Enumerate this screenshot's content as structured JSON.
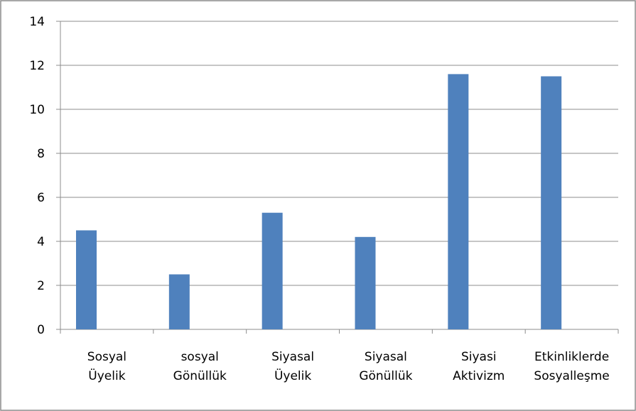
{
  "chart_data": {
    "type": "bar",
    "title": "",
    "xlabel": "",
    "ylabel": "",
    "ylim": [
      0,
      14
    ],
    "yticks": [
      0,
      2,
      4,
      6,
      8,
      10,
      12,
      14
    ],
    "grid": true,
    "legend": "none",
    "bar_color": "#4F81BD",
    "categories": [
      [
        "Sosyal",
        "Üyelik"
      ],
      [
        "sosyal",
        "Gönüllük"
      ],
      [
        "Siyasal",
        "Üyelik"
      ],
      [
        "Siyasal",
        "Gönüllük"
      ],
      [
        "Siyasi",
        "Aktivizm"
      ],
      [
        "Etkinliklerde",
        "Sosyalleşme"
      ]
    ],
    "values": [
      4.5,
      2.5,
      5.3,
      4.2,
      11.6,
      11.5
    ]
  }
}
